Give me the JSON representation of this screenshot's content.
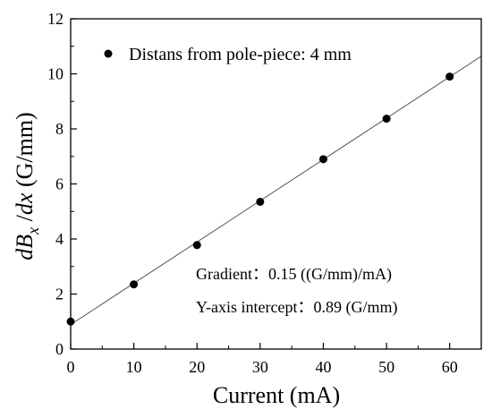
{
  "chart_data": {
    "type": "scatter",
    "xlabel": "Current (mA)",
    "ylabel": {
      "d": "d",
      "B": "B",
      "sub": "x",
      "over": " /",
      "dx": "dx",
      "unit": " (G/mm)"
    },
    "xlim": [
      0,
      65
    ],
    "ylim": [
      0,
      12
    ],
    "xticks": [
      0,
      10,
      20,
      30,
      40,
      50,
      60
    ],
    "yticks": [
      0,
      2,
      4,
      6,
      8,
      10,
      12
    ],
    "grid": false,
    "legend_position": "top-left",
    "series": [
      {
        "name": "Distans from pole-piece: 4 mm",
        "x": [
          0,
          10,
          20,
          30,
          40,
          50,
          60
        ],
        "y": [
          1.0,
          2.35,
          3.78,
          5.35,
          6.9,
          8.37,
          9.9
        ],
        "color": "#000000"
      }
    ],
    "fit_line": {
      "slope": 0.15,
      "intercept": 0.89,
      "color": "#555555"
    },
    "annotations": [
      "Gradient：0.15 ((G/mm)/mA)",
      "Y-axis intercept：0.89 (G/mm)"
    ]
  }
}
